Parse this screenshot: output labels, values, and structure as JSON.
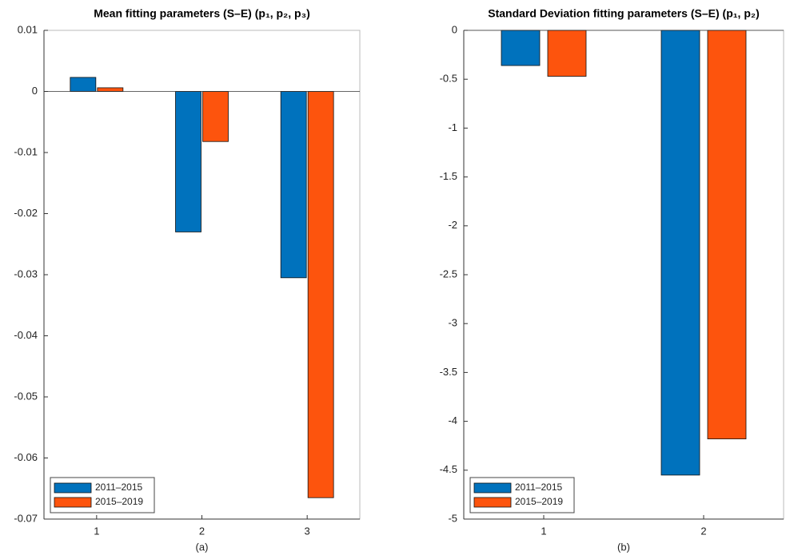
{
  "chart_data": [
    {
      "type": "bar",
      "title": "Mean fitting parameters (S–E)  (p₁, p₂, p₃)",
      "x_label": "(a)",
      "categories": [
        "1",
        "2",
        "3"
      ],
      "series": [
        {
          "name": "2011–2015",
          "color": "#0072bd",
          "values": [
            0.0023,
            -0.023,
            -0.0305
          ]
        },
        {
          "name": "2015–2019",
          "color": "#fd540d",
          "values": [
            0.0006,
            -0.0082,
            -0.0665
          ]
        }
      ],
      "ylim": [
        -0.07,
        0.01
      ],
      "yticks": [
        -0.07,
        -0.06,
        -0.05,
        -0.04,
        -0.03,
        -0.02,
        -0.01,
        0,
        0.01
      ],
      "legend": "lower-left"
    },
    {
      "type": "bar",
      "title": "Standard Deviation fitting parameters (S–E) (p₁, p₂)",
      "x_label": "(b)",
      "categories": [
        "1",
        "2"
      ],
      "series": [
        {
          "name": "2011–2015",
          "color": "#0072bd",
          "values": [
            -0.36,
            -4.55
          ]
        },
        {
          "name": "2015–2019",
          "color": "#fd540d",
          "values": [
            -0.47,
            -4.18
          ]
        }
      ],
      "ylim": [
        -5,
        0
      ],
      "yticks": [
        -5,
        -4.5,
        -4,
        -3.5,
        -3,
        -2.5,
        -2,
        -1.5,
        -1,
        -0.5,
        0
      ],
      "legend": "lower-left"
    }
  ]
}
